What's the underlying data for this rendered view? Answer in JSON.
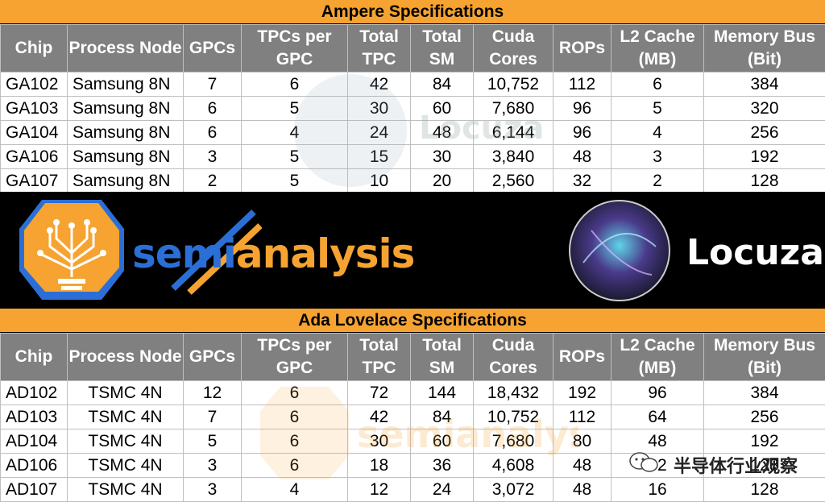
{
  "ampere": {
    "title": "Ampere Specifications",
    "headers": [
      "Chip",
      "Process Node",
      "GPCs",
      "TPCs per GPC",
      "Total TPC",
      "Total SM",
      "Cuda Cores",
      "ROPs",
      "L2 Cache (MB)",
      "Memory Bus (Bit)"
    ],
    "rows": [
      [
        "GA102",
        "Samsung 8N",
        "7",
        "6",
        "42",
        "84",
        "10,752",
        "112",
        "6",
        "384"
      ],
      [
        "GA103",
        "Samsung 8N",
        "6",
        "5",
        "30",
        "60",
        "7,680",
        "96",
        "5",
        "320"
      ],
      [
        "GA104",
        "Samsung 8N",
        "6",
        "4",
        "24",
        "48",
        "6,144",
        "96",
        "4",
        "256"
      ],
      [
        "GA106",
        "Samsung 8N",
        "3",
        "5",
        "15",
        "30",
        "3,840",
        "48",
        "3",
        "192"
      ],
      [
        "GA107",
        "Samsung 8N",
        "2",
        "5",
        "10",
        "20",
        "2,560",
        "32",
        "2",
        "128"
      ]
    ]
  },
  "ada": {
    "title": "Ada Lovelace Specifications",
    "headers": [
      "Chip",
      "Process Node",
      "GPCs",
      "TPCs per GPC",
      "Total TPC",
      "Total SM",
      "Cuda Cores",
      "ROPs",
      "L2 Cache (MB)",
      "Memory Bus (Bit)"
    ],
    "rows": [
      [
        "AD102",
        "TSMC 4N",
        "12",
        "6",
        "72",
        "144",
        "18,432",
        "192",
        "96",
        "384"
      ],
      [
        "AD103",
        "TSMC 4N",
        "7",
        "6",
        "42",
        "84",
        "10,752",
        "112",
        "64",
        "256"
      ],
      [
        "AD104",
        "TSMC 4N",
        "5",
        "6",
        "30",
        "60",
        "7,680",
        "80",
        "48",
        "192"
      ],
      [
        "AD106",
        "TSMC 4N",
        "3",
        "6",
        "18",
        "36",
        "4,608",
        "48",
        "32",
        "128"
      ],
      [
        "AD107",
        "TSMC 4N",
        "3",
        "4",
        "12",
        "24",
        "3,072",
        "48",
        "16",
        "128"
      ]
    ]
  },
  "banner": {
    "semianalysis_a": "semi",
    "semianalysis_b": "analysis",
    "locuza": "Locuza"
  },
  "watermark": {
    "text": "半导体行业观察",
    "ghost_locuza": "Locuza",
    "ghost_semi": "semianalysis"
  },
  "colors": {
    "title_orange": "#f6a331",
    "header_gray": "#808080",
    "semi_blue": "#2b6fd6",
    "semi_orange": "#f6a331"
  }
}
